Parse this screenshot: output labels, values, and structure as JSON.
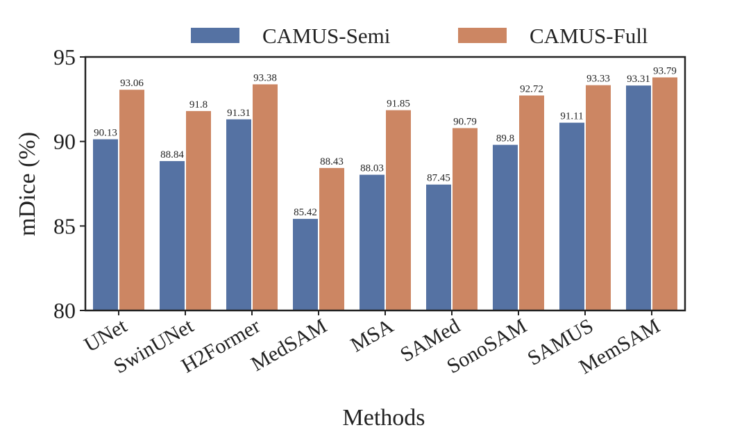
{
  "chart_data": {
    "type": "bar",
    "title": "",
    "xlabel": "Methods",
    "ylabel": "mDice (%)",
    "ylim": [
      80,
      95
    ],
    "yticks": [
      80,
      85,
      90,
      95
    ],
    "categories": [
      "UNet",
      "SwinUNet",
      "H2Former",
      "MedSAM",
      "MSA",
      "SAMed",
      "SonoSAM",
      "SAMUS",
      "MemSAM"
    ],
    "series": [
      {
        "name": "CAMUS-Semi",
        "color": "#5572a3",
        "values": [
          90.13,
          88.84,
          91.31,
          85.42,
          88.03,
          87.45,
          89.8,
          91.11,
          93.31
        ],
        "labels": [
          "90.13",
          "88.84",
          "91.31",
          "85.42",
          "88.03",
          "87.45",
          "89.8",
          "91.11",
          "93.31"
        ]
      },
      {
        "name": "CAMUS-Full",
        "color": "#cc8663",
        "values": [
          93.06,
          91.8,
          93.38,
          88.43,
          91.85,
          90.79,
          92.72,
          93.33,
          93.79
        ],
        "labels": [
          "93.06",
          "91.8",
          "93.38",
          "88.43",
          "91.85",
          "90.79",
          "92.72",
          "93.33",
          "93.79"
        ]
      }
    ],
    "legend_position": "top-center",
    "grid": false
  }
}
